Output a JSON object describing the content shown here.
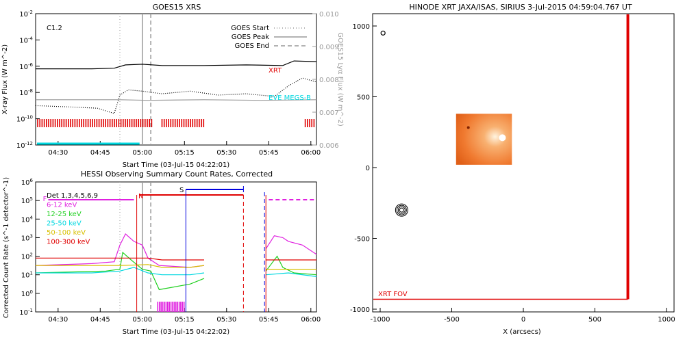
{
  "colors": {
    "red": "#e00000",
    "gray": "#999999",
    "cyan": "#00d8e0",
    "magenta": "#e020e0",
    "green": "#20d020",
    "yellow": "#d8c000",
    "blue": "#0000e0",
    "orange": "#f07020"
  },
  "chart_data": [
    {
      "id": "goes",
      "type": "line",
      "title": "GOES15 XRS",
      "xlabel": "Start Time (03-Jul-15 04:22:01)",
      "ylabel": "X-ray Flux (W m^-2)",
      "y2label": "GOES15 Lyα Flux (W m^-2)",
      "x_ticks": [
        "04:30",
        "04:45",
        "05:00",
        "05:15",
        "05:30",
        "05:45",
        "06:00"
      ],
      "y_ticks": [
        "10^-2",
        "10^-4",
        "10^-6",
        "10^-8",
        "10^-10",
        "10^-12"
      ],
      "y2_ticks": [
        "0.010",
        "0.009",
        "0.008",
        "0.007",
        "0.006"
      ],
      "ylim_log10": [
        -12,
        -2
      ],
      "y2lim": [
        0.006,
        0.01
      ],
      "xlim_min": [
        0,
        100
      ],
      "annotation": "C1.2",
      "legend": [
        {
          "label": "GOES Start",
          "style": "dotted"
        },
        {
          "label": "GOES Peak",
          "style": "solid"
        },
        {
          "label": "GOES End",
          "style": "dashed"
        }
      ],
      "series_labels": {
        "xrt": "XRT",
        "eve": "EVE MEGS-B"
      },
      "markers_min": {
        "start": 30,
        "peak": 38,
        "end": 41
      },
      "series": [
        {
          "name": "XRS long",
          "color": "black",
          "x": [
            0,
            20,
            28,
            32,
            38,
            45,
            60,
            75,
            88,
            92,
            100
          ],
          "y": [
            -6.2,
            -6.2,
            -6.15,
            -5.9,
            -5.85,
            -5.95,
            -5.95,
            -5.9,
            -5.95,
            -5.6,
            -5.65
          ]
        },
        {
          "name": "XRS short",
          "color": "black",
          "style": "dotted",
          "x": [
            0,
            12,
            22,
            28,
            30,
            33,
            38,
            45,
            55,
            65,
            75,
            85,
            90,
            95,
            100
          ],
          "y": [
            -9.0,
            -9.1,
            -9.2,
            -9.6,
            -8.2,
            -7.8,
            -7.9,
            -8.1,
            -7.9,
            -8.2,
            -8.1,
            -8.3,
            -7.5,
            -6.9,
            -7.2
          ]
        },
        {
          "name": "EVE MEGS-B",
          "color": "gray",
          "x": [
            0,
            30,
            40,
            60,
            80,
            100
          ],
          "y": [
            -8.55,
            -8.55,
            -8.6,
            -8.55,
            -8.6,
            -8.55
          ]
        }
      ]
    },
    {
      "id": "hessi",
      "type": "line",
      "title": "HESSI Observing Summary Count Rates, Corrected",
      "xlabel": "Start Time (03-Jul-15 04:22:02)",
      "ylabel": "Corrected Count Rate (s^-1 detector^-1)",
      "x_ticks": [
        "04:30",
        "04:45",
        "05:00",
        "05:15",
        "05:30",
        "05:45",
        "06:00"
      ],
      "y_ticks": [
        "10^6",
        "10^5",
        "10^4",
        "10^3",
        "10^2",
        "10^1",
        "10^0",
        "10^-1"
      ],
      "ylim_log10": [
        -1,
        6
      ],
      "xlim_min": [
        0,
        100
      ],
      "legend": [
        {
          "label": "Det 1,3,4,5,6,9",
          "color": "#000000"
        },
        {
          "label": "6-12 keV",
          "color": "#e020e0"
        },
        {
          "label": "12-25 keV",
          "color": "#20d020"
        },
        {
          "label": "25-50 keV",
          "color": "#00d8e0"
        },
        {
          "label": "50-100 keV",
          "color": "#d8c000"
        },
        {
          "label": "100-300 keV",
          "color": "#e00000"
        }
      ],
      "flags": [
        "F",
        "N",
        "S"
      ],
      "series": [
        {
          "name": "6-12 keV",
          "color": "#e020e0",
          "x": [
            0,
            20,
            28,
            30,
            32,
            35,
            38,
            40,
            44,
            55,
            60,
            61,
            80,
            82,
            85,
            88,
            90,
            95,
            100
          ],
          "y": [
            1.5,
            1.6,
            1.7,
            2.6,
            3.2,
            2.8,
            2.6,
            1.9,
            1.5,
            1.4,
            1.5,
            null,
            null,
            2.4,
            3.1,
            3.0,
            2.8,
            2.6,
            2.1
          ]
        },
        {
          "name": "12-25 keV",
          "color": "#20d020",
          "x": [
            0,
            25,
            30,
            31,
            34,
            38,
            41,
            44,
            55,
            60,
            61,
            80,
            82,
            86,
            88,
            92,
            100
          ],
          "y": [
            1.1,
            1.2,
            1.3,
            2.2,
            1.8,
            1.3,
            1.2,
            0.2,
            0.5,
            0.8,
            null,
            null,
            1.2,
            2.0,
            1.4,
            1.1,
            1.0
          ]
        },
        {
          "name": "25-50 keV",
          "color": "#00d8e0",
          "x": [
            0,
            20,
            30,
            35,
            40,
            45,
            55,
            60,
            61,
            80,
            82,
            90,
            100
          ],
          "y": [
            1.1,
            1.1,
            1.2,
            1.4,
            1.1,
            1.0,
            1.0,
            1.1,
            null,
            null,
            1.0,
            1.1,
            0.9
          ]
        },
        {
          "name": "50-100 keV",
          "color": "#d8c000",
          "x": [
            0,
            30,
            40,
            45,
            55,
            60,
            61,
            80,
            82,
            100
          ],
          "y": [
            1.5,
            1.5,
            1.55,
            1.4,
            1.4,
            1.5,
            null,
            null,
            1.3,
            1.3
          ]
        },
        {
          "name": "100-300 keV",
          "color": "#e00000",
          "x": [
            0,
            30,
            40,
            45,
            55,
            60,
            61,
            80,
            82,
            100
          ],
          "y": [
            1.9,
            1.9,
            1.9,
            1.8,
            1.8,
            1.8,
            null,
            null,
            1.8,
            1.8
          ]
        }
      ],
      "markers_min": {
        "start": 30,
        "peak": 38,
        "end": 41
      }
    },
    {
      "id": "xrt",
      "type": "scatter",
      "title": "HINODE XRT JAXA/ISAS, SIRIUS  3-Jul-2015 04:59:04.767 UT",
      "xlabel": "X (arcsecs)",
      "x_ticks": [
        -1000,
        -500,
        0,
        500,
        1000
      ],
      "y_ticks": [
        1000,
        500,
        0,
        -500,
        -1000
      ],
      "xlim": [
        -1000,
        1000
      ],
      "ylim": [
        -1000,
        1000
      ],
      "fov_label": "XRT FOV",
      "fov_x": [
        -1000,
        730
      ],
      "fov_y": [
        -930,
        1000
      ],
      "image_x": [
        -470,
        -80
      ],
      "image_y": [
        20,
        380
      ],
      "contour_center": [
        -850,
        -300
      ],
      "small_marker": [
        -980,
        950
      ]
    }
  ]
}
